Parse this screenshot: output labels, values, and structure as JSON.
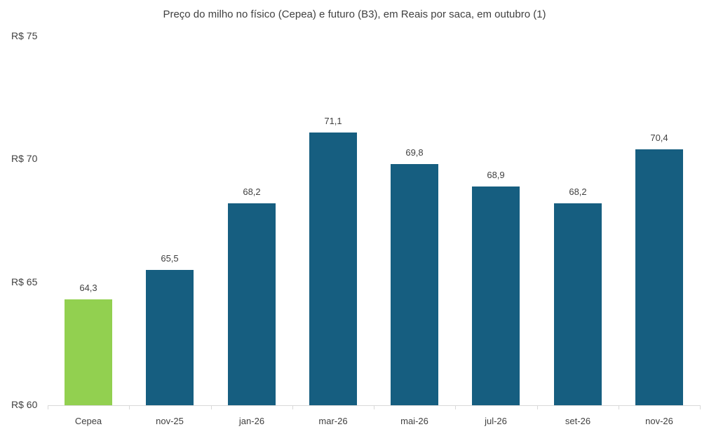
{
  "chart_data": {
    "type": "bar",
    "title": "Preço do milho no físico (Cepea) e futuro (B3), em Reais por saca, em outubro (1)",
    "xlabel": "",
    "ylabel": "",
    "categories": [
      "Cepea",
      "nov-25",
      "jan-26",
      "mar-26",
      "mai-26",
      "jul-26",
      "set-26",
      "nov-26"
    ],
    "values": [
      64.3,
      65.5,
      68.2,
      71.1,
      69.8,
      68.9,
      68.2,
      70.4
    ],
    "value_labels": [
      "64,3",
      "65,5",
      "68,2",
      "71,1",
      "69,8",
      "68,9",
      "68,2",
      "70,4"
    ],
    "bar_colors": [
      "#92d050",
      "#165e80",
      "#165e80",
      "#165e80",
      "#165e80",
      "#165e80",
      "#165e80",
      "#165e80"
    ],
    "ylim": [
      60,
      75
    ],
    "yticks": [
      60,
      65,
      70,
      75
    ],
    "ytick_labels": [
      "R$ 60",
      "R$ 65",
      "R$ 70",
      "R$ 75"
    ],
    "grid": false,
    "legend": null
  }
}
